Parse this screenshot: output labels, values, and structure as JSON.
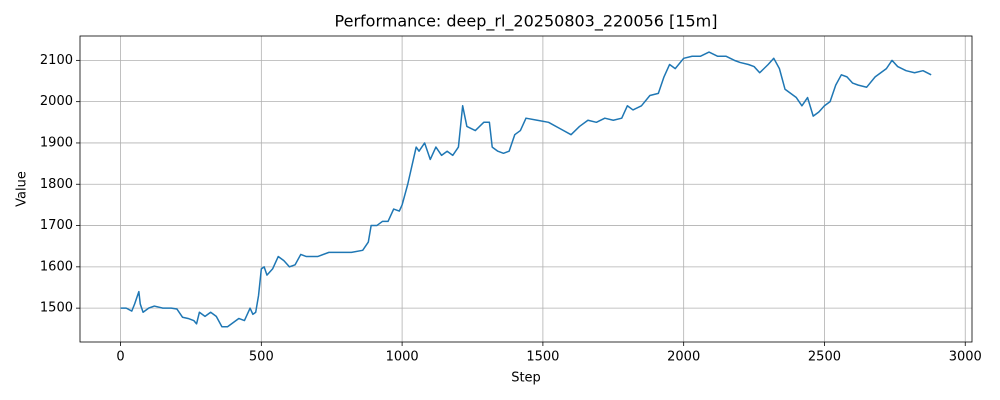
{
  "chart_data": {
    "type": "line",
    "title": "Performance: deep_rl_20250803_220056 [15m]",
    "x_label": "Step",
    "y_label": "Value",
    "color": "#1f77b4",
    "grid": true,
    "xlim": [
      -144,
      3024
    ],
    "ylim": [
      1418,
      2159
    ],
    "xticks": [
      0,
      500,
      1000,
      1500,
      2000,
      2500,
      3000
    ],
    "yticks": [
      1500,
      1600,
      1700,
      1800,
      1900,
      2000,
      2100
    ],
    "x": [
      0,
      20,
      40,
      50,
      60,
      65,
      70,
      80,
      100,
      120,
      150,
      180,
      200,
      220,
      240,
      260,
      270,
      280,
      300,
      320,
      340,
      360,
      380,
      400,
      420,
      440,
      460,
      470,
      480,
      490,
      500,
      510,
      520,
      540,
      560,
      580,
      600,
      620,
      640,
      660,
      700,
      740,
      780,
      820,
      860,
      880,
      890,
      910,
      930,
      950,
      970,
      990,
      1000,
      1020,
      1040,
      1050,
      1060,
      1080,
      1100,
      1120,
      1140,
      1160,
      1180,
      1200,
      1215,
      1230,
      1260,
      1290,
      1310,
      1320,
      1340,
      1360,
      1380,
      1400,
      1420,
      1440,
      1480,
      1520,
      1560,
      1600,
      1630,
      1660,
      1690,
      1720,
      1750,
      1780,
      1800,
      1820,
      1850,
      1880,
      1910,
      1930,
      1950,
      1970,
      2000,
      2030,
      2060,
      2090,
      2120,
      2150,
      2180,
      2200,
      2230,
      2250,
      2270,
      2300,
      2320,
      2340,
      2360,
      2380,
      2400,
      2420,
      2440,
      2460,
      2480,
      2500,
      2520,
      2540,
      2560,
      2580,
      2600,
      2620,
      2650,
      2680,
      2700,
      2720,
      2740,
      2760,
      2790,
      2820,
      2850,
      2879
    ],
    "values": [
      1500,
      1500,
      1493,
      1510,
      1530,
      1540,
      1510,
      1490,
      1500,
      1505,
      1500,
      1500,
      1498,
      1478,
      1475,
      1470,
      1462,
      1490,
      1480,
      1490,
      1480,
      1455,
      1455,
      1465,
      1475,
      1470,
      1500,
      1485,
      1490,
      1530,
      1595,
      1600,
      1580,
      1595,
      1625,
      1615,
      1600,
      1605,
      1630,
      1625,
      1625,
      1635,
      1635,
      1635,
      1640,
      1660,
      1700,
      1700,
      1710,
      1710,
      1740,
      1735,
      1750,
      1800,
      1860,
      1890,
      1880,
      1900,
      1860,
      1890,
      1870,
      1880,
      1870,
      1890,
      1990,
      1940,
      1930,
      1950,
      1950,
      1890,
      1880,
      1875,
      1880,
      1920,
      1930,
      1960,
      1955,
      1950,
      1935,
      1920,
      1940,
      1955,
      1950,
      1960,
      1955,
      1960,
      1990,
      1980,
      1990,
      2015,
      2020,
      2060,
      2090,
      2080,
      2105,
      2110,
      2110,
      2120,
      2110,
      2110,
      2100,
      2095,
      2090,
      2085,
      2070,
      2090,
      2105,
      2080,
      2030,
      2020,
      2010,
      1990,
      2010,
      1965,
      1975,
      1990,
      2000,
      2040,
      2065,
      2060,
      2045,
      2040,
      2035,
      2060,
      2070,
      2080,
      2100,
      2085,
      2075,
      2070,
      2075,
      2065
    ]
  }
}
